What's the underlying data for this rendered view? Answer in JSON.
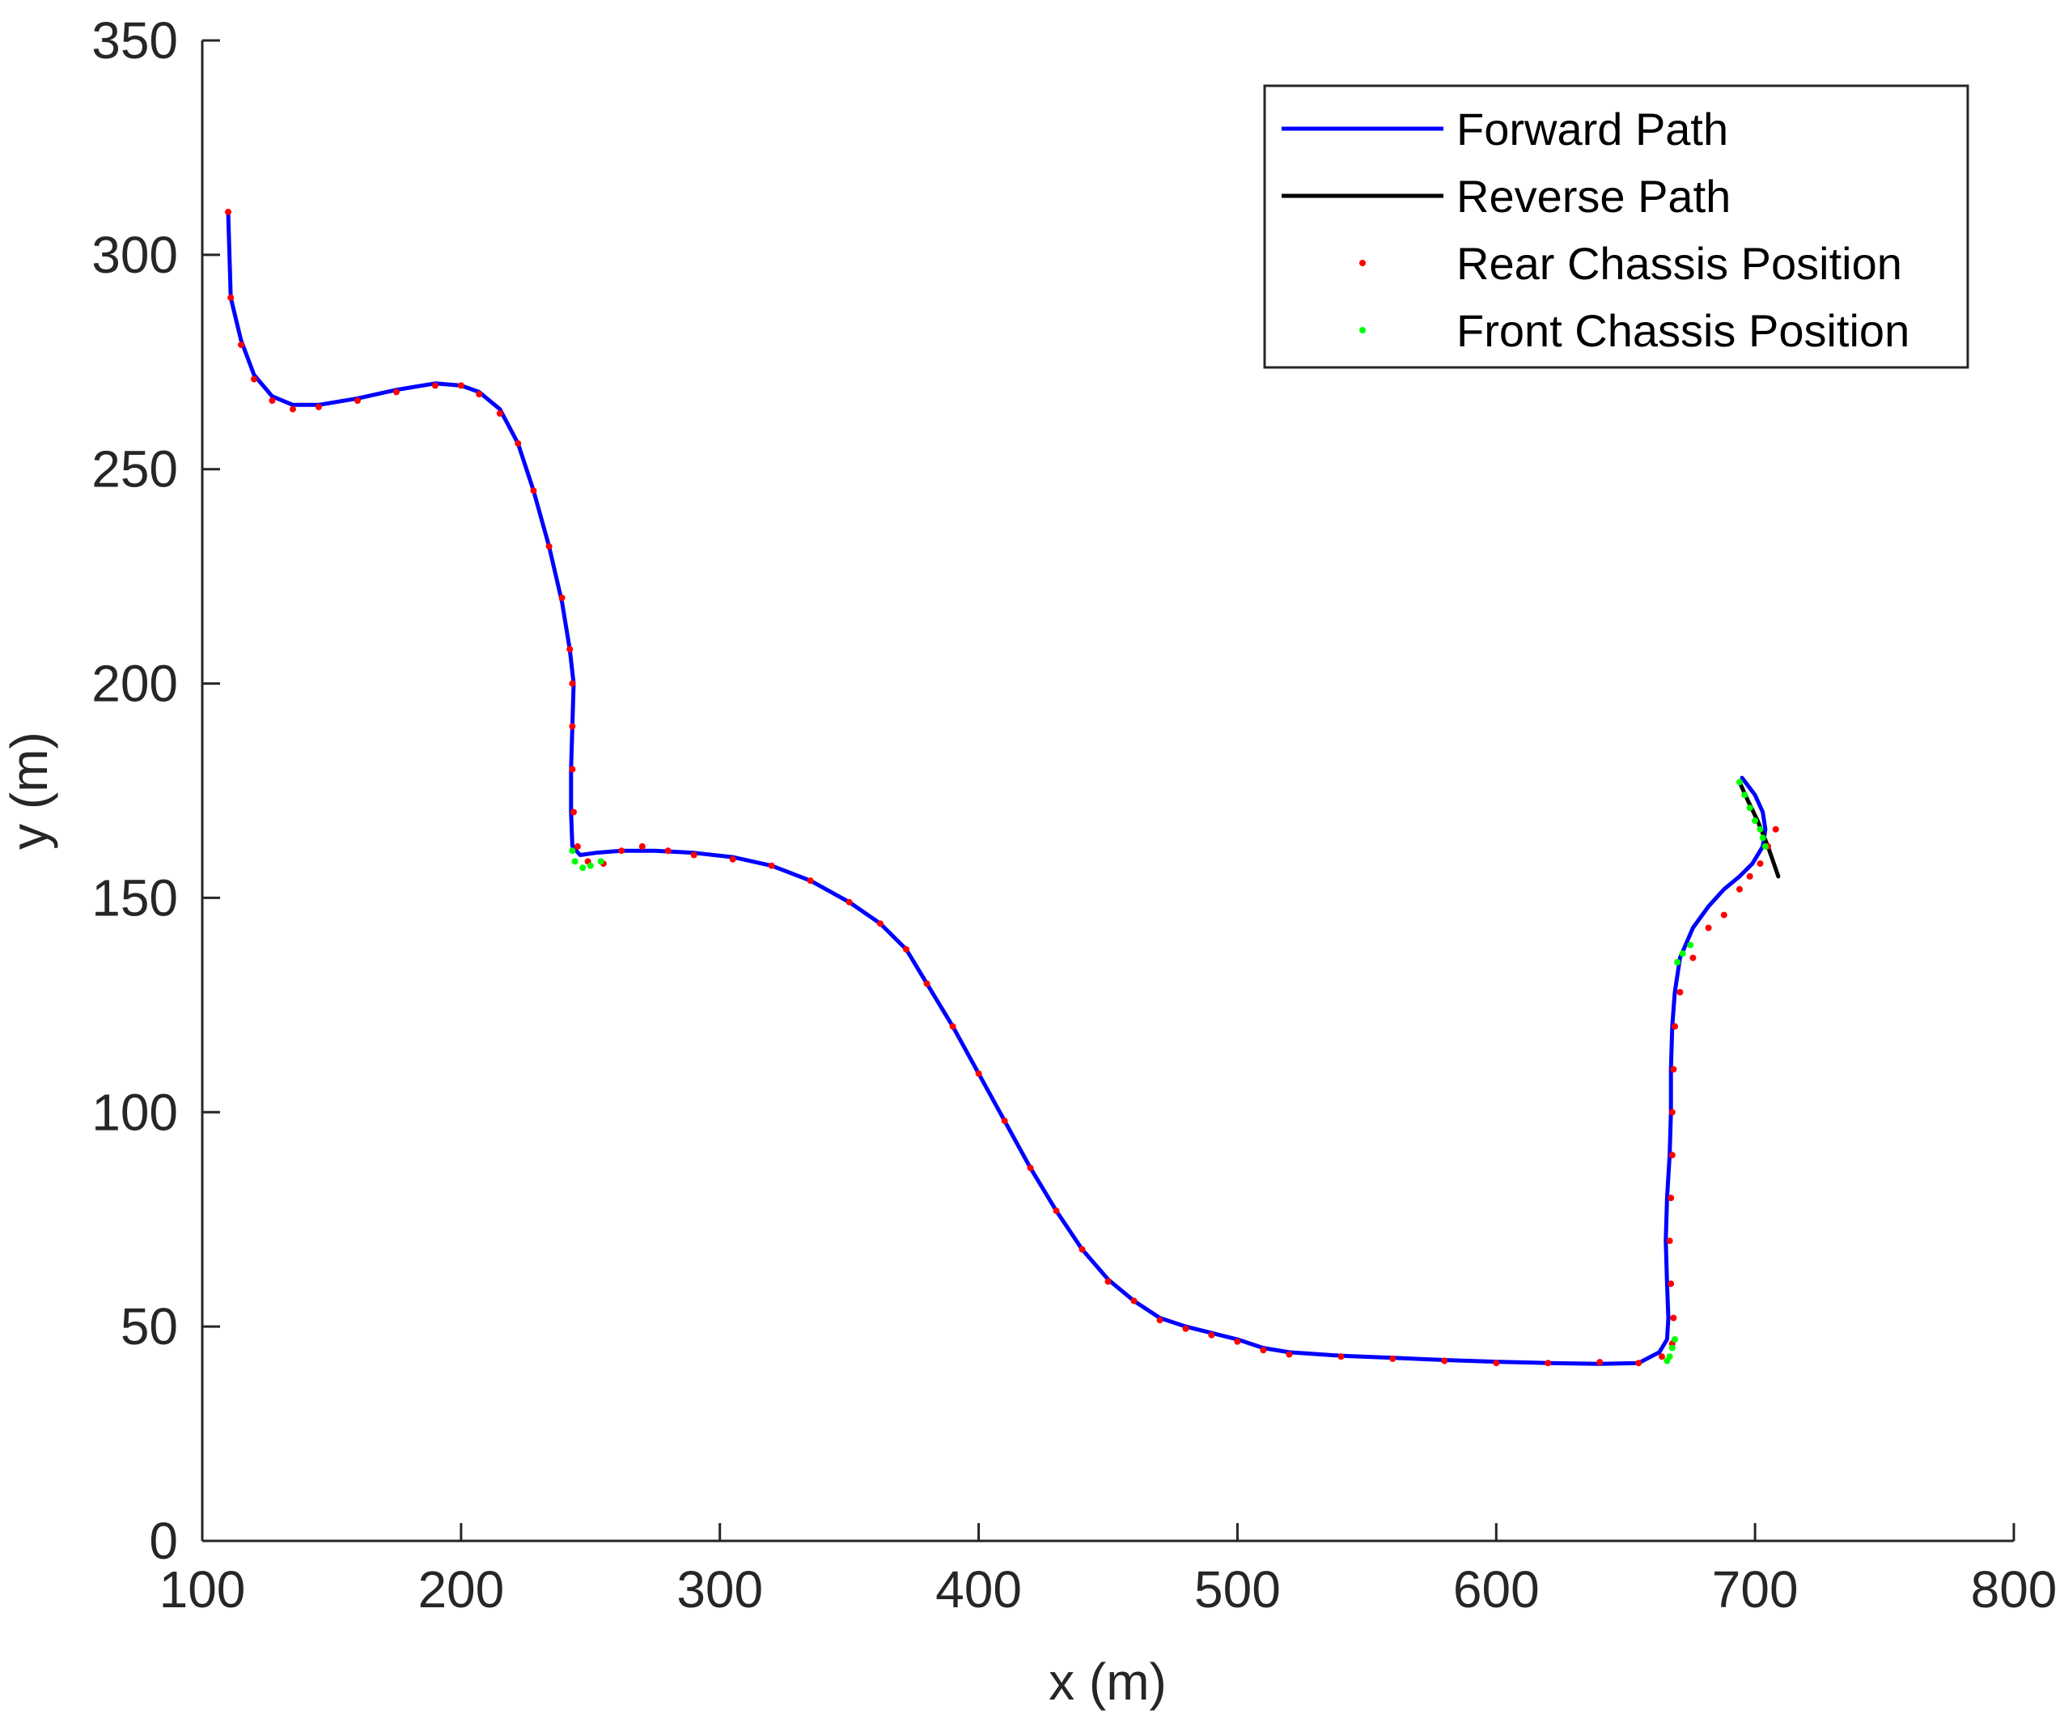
{
  "chart_data": {
    "type": "line",
    "title": "",
    "xlabel": "x (m)",
    "ylabel": "y (m)",
    "xlim": [
      100,
      800
    ],
    "ylim": [
      0,
      350
    ],
    "xticks": [
      100,
      200,
      300,
      400,
      500,
      600,
      700,
      800
    ],
    "yticks": [
      0,
      50,
      100,
      150,
      200,
      250,
      300,
      350
    ],
    "grid": false,
    "legend_position": "top-right",
    "series": [
      {
        "name": "Forward Path",
        "kind": "line",
        "color": "#0000ff",
        "x": [
          110,
          111,
          115,
          120,
          127,
          135,
          145,
          160,
          175,
          190,
          200,
          207,
          215,
          222,
          228,
          234,
          239,
          242,
          243.5,
          243,
          242.5,
          242.5,
          243,
          246,
          252,
          262,
          275,
          290,
          305,
          320,
          335,
          350,
          362,
          372,
          380,
          390,
          400,
          410,
          420,
          430,
          440,
          450,
          460,
          470,
          480,
          490,
          500,
          510,
          520,
          540,
          560,
          580,
          600,
          620,
          640,
          655,
          663,
          666,
          666.5,
          666,
          665.5,
          666,
          667,
          667.5,
          667.5,
          668,
          669,
          671,
          676,
          682,
          688,
          694,
          699,
          703,
          704,
          703,
          700,
          695
        ],
        "y": [
          310,
          290,
          280,
          272,
          267,
          265,
          265,
          266.5,
          268.5,
          270,
          269.5,
          268,
          264,
          256,
          245,
          232,
          219,
          208,
          200,
          190,
          180,
          170,
          162,
          160,
          160.5,
          161,
          161,
          160.5,
          159.5,
          157.5,
          154,
          149,
          144,
          138,
          130,
          120,
          109,
          98,
          87,
          77,
          68,
          61,
          56,
          52,
          50,
          48.5,
          47,
          45,
          44,
          43.2,
          42.7,
          42.2,
          41.8,
          41.5,
          41.3,
          41.5,
          44,
          47,
          52,
          60,
          70,
          80,
          90,
          100,
          110,
          120,
          128,
          136,
          143,
          148,
          152,
          155,
          158,
          162,
          166,
          170,
          174,
          178
        ]
      },
      {
        "name": "Reverse Path",
        "kind": "line",
        "color": "#000000",
        "x": [
          709,
          705,
          701,
          697,
          694
        ],
        "y": [
          155,
          162,
          168,
          173,
          177
        ]
      },
      {
        "name": "Rear Chassis Position",
        "kind": "points",
        "color": "#ff0000",
        "x": [
          110,
          111,
          115,
          120,
          127,
          135,
          145,
          160,
          175,
          190,
          200,
          207,
          215,
          222,
          228,
          234,
          239,
          242,
          243,
          243,
          243,
          243.5,
          245,
          249,
          255,
          262,
          270,
          280,
          290,
          305,
          320,
          335,
          350,
          362,
          372,
          380,
          390,
          400,
          410,
          420,
          430,
          440,
          450,
          460,
          470,
          480,
          490,
          500,
          510,
          520,
          540,
          560,
          580,
          600,
          620,
          640,
          655,
          664,
          668,
          668.5,
          667.5,
          667,
          667.5,
          668,
          668,
          668.5,
          669,
          671,
          676,
          682,
          688,
          694,
          698,
          702,
          705,
          708
        ],
        "y": [
          310,
          290,
          279,
          271,
          266,
          264,
          264.5,
          266,
          268,
          269.5,
          269.5,
          267.5,
          263,
          256,
          245,
          232,
          220,
          208,
          200,
          190,
          180,
          170,
          162,
          158.5,
          158,
          161,
          162,
          161,
          160,
          159,
          157.5,
          154,
          149,
          144,
          138,
          130,
          120,
          109,
          98,
          87,
          77,
          68,
          60.5,
          56,
          51.5,
          49.5,
          48,
          46.5,
          44.5,
          43.5,
          43,
          42.5,
          42,
          41.5,
          41.5,
          41.7,
          41.5,
          43,
          46,
          52,
          60,
          70,
          80,
          90,
          100,
          110,
          120,
          128,
          136,
          143,
          146,
          152,
          155,
          158,
          162,
          166
        ]
      },
      {
        "name": "Front Chassis Position",
        "kind": "points",
        "color": "#00ff00",
        "x": [
          243,
          244,
          247,
          250,
          254,
          666,
          667,
          668,
          669,
          670,
          672,
          675,
          694,
          696,
          698,
          700,
          702,
          703,
          704
        ],
        "y": [
          161,
          158.5,
          157,
          157.5,
          158.5,
          42,
          43,
          45,
          47,
          135,
          137,
          139,
          177,
          174,
          171,
          168,
          166,
          164,
          162
        ]
      }
    ]
  }
}
